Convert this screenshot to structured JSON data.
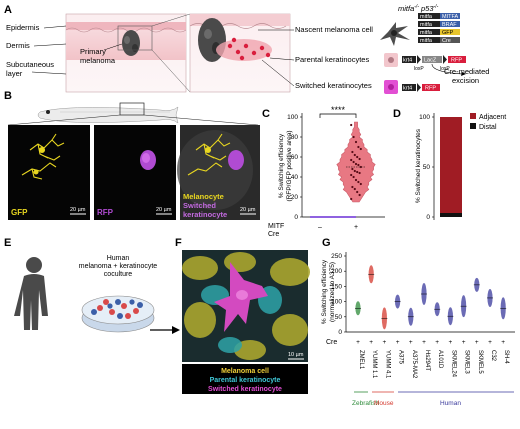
{
  "panel_letters": [
    "A",
    "B",
    "C",
    "D",
    "E",
    "F",
    "G"
  ],
  "panel_a": {
    "tissue_labels": [
      "Epidermis",
      "Dermis",
      "Subcutaneous layer"
    ],
    "tumor_label": "Primary melanoma",
    "cell_labels": [
      "Nascent melanoma cell",
      "Parental keratinocytes",
      "Switched keratinocytes"
    ],
    "genotype": "mitfa",
    "genotype_sup": "-/-",
    "genotype_mid": "p53",
    "genotype_sup2": "-/-",
    "constructs": [
      {
        "promoter": "mitfa",
        "gene": "MITFA",
        "color": "#3b5fa8"
      },
      {
        "promoter": "mitfa",
        "gene": "BRAF",
        "color": "#3b5fa8"
      },
      {
        "promoter": "mitfa",
        "gene": "GFP",
        "color": "#e8c52b"
      },
      {
        "promoter": "mitfa",
        "gene": "Cre",
        "color": "#555555"
      }
    ],
    "lox_cassette": {
      "promoter": "krt4",
      "stop": "LacZ",
      "reporter": "RFP",
      "lox": [
        "loxP",
        "loxP"
      ]
    },
    "excision_label": "Cre-mediated excision",
    "switched_cassette": {
      "promoter": "krt4",
      "reporter": "RFP"
    }
  },
  "panel_b": {
    "channels": [
      "GFP",
      "RFP"
    ],
    "merge_labels": [
      "Melanocyte",
      "Switched keratinocyte"
    ],
    "scale": "20 µm"
  },
  "panel_c": {
    "significance": "****",
    "ylabel": "% Switching efficiency (RFP/GFP positive area)",
    "yticks": [
      "0",
      "20",
      "40",
      "60",
      "80",
      "100"
    ],
    "row_labels": [
      "MITF",
      "Cre"
    ],
    "groups": [
      "–",
      "+"
    ]
  },
  "panel_d": {
    "ylabel": "% Switched keratinocytes",
    "yticks": [
      "0",
      "50",
      "100"
    ],
    "legend": [
      {
        "label": "Adjacent",
        "color": "#a01c24"
      },
      {
        "label": "Distal",
        "color": "#111111"
      }
    ]
  },
  "panel_e": {
    "label": "Human melanoma + keratinocyte coculture"
  },
  "panel_f": {
    "legend": [
      {
        "label": "Melanoma cell",
        "color": "#f2d23b"
      },
      {
        "label": "Parental keratinocyte",
        "color": "#3fc7d6"
      },
      {
        "label": "Switched keratinocyte",
        "color": "#e24fd3"
      }
    ],
    "scale": "10 µm"
  },
  "panel_g": {
    "ylabel": "% Switching efficiency (normalized to A375)",
    "yticks": [
      "0",
      "50",
      "100",
      "150",
      "200",
      "250"
    ],
    "cre_label": "Cre",
    "cell_lines": [
      "ZMEL1",
      "YUMM 1.1",
      "YUMM 4.1",
      "A375",
      "A375-MA2",
      "Hs294T",
      "A101D",
      "SKMEL24",
      "SKMEL3",
      "SKMEL5",
      "C32",
      "SH-4"
    ],
    "species": [
      {
        "label": "Zebrafish",
        "color": "#2e8b3a"
      },
      {
        "label": "Mouse",
        "color": "#d43a2f"
      },
      {
        "label": "Human",
        "color": "#3a3a9c"
      }
    ]
  },
  "chart_data": [
    {
      "type": "violin",
      "panel": "C",
      "ylabel": "% Switching efficiency (RFP/GFP positive area)",
      "ylim": [
        0,
        100
      ],
      "categories": [
        "–",
        "+"
      ],
      "series": [
        {
          "name": "–",
          "values": [
            0,
            0,
            0,
            0,
            0,
            0,
            0,
            0,
            0,
            0
          ]
        },
        {
          "name": "+",
          "values": [
            18,
            22,
            25,
            28,
            30,
            33,
            35,
            37,
            40,
            42,
            44,
            45,
            46,
            48,
            50,
            52,
            53,
            55,
            57,
            58,
            60,
            62,
            65,
            68,
            70,
            75,
            80,
            92
          ]
        }
      ],
      "significance": "****",
      "color": "#e5616e"
    },
    {
      "type": "bar",
      "panel": "D",
      "ylabel": "% Switched keratinocytes",
      "ylim": [
        0,
        100
      ],
      "categories": [
        ""
      ],
      "series": [
        {
          "name": "Adjacent",
          "values": [
            96
          ]
        },
        {
          "name": "Distal",
          "values": [
            4
          ]
        }
      ]
    },
    {
      "type": "violin",
      "panel": "G",
      "ylabel": "% Switching efficiency (normalized to A375)",
      "ylim": [
        0,
        250
      ],
      "categories": [
        "ZMEL1",
        "YUMM 1.1",
        "YUMM 4.1",
        "A375",
        "A375-MA2",
        "Hs294T",
        "A101D",
        "SKMEL24",
        "SKMEL3",
        "SKMEL5",
        "C32",
        "SH-4"
      ],
      "values": [
        78,
        190,
        45,
        100,
        50,
        125,
        75,
        52,
        85,
        155,
        112,
        78
      ],
      "colors": [
        "#2e8b3a",
        "#d43a2f",
        "#d43a2f",
        "#3a3a9c",
        "#3a3a9c",
        "#3a3a9c",
        "#3a3a9c",
        "#3a3a9c",
        "#3a3a9c",
        "#3a3a9c",
        "#3a3a9c",
        "#3a3a9c"
      ]
    }
  ]
}
